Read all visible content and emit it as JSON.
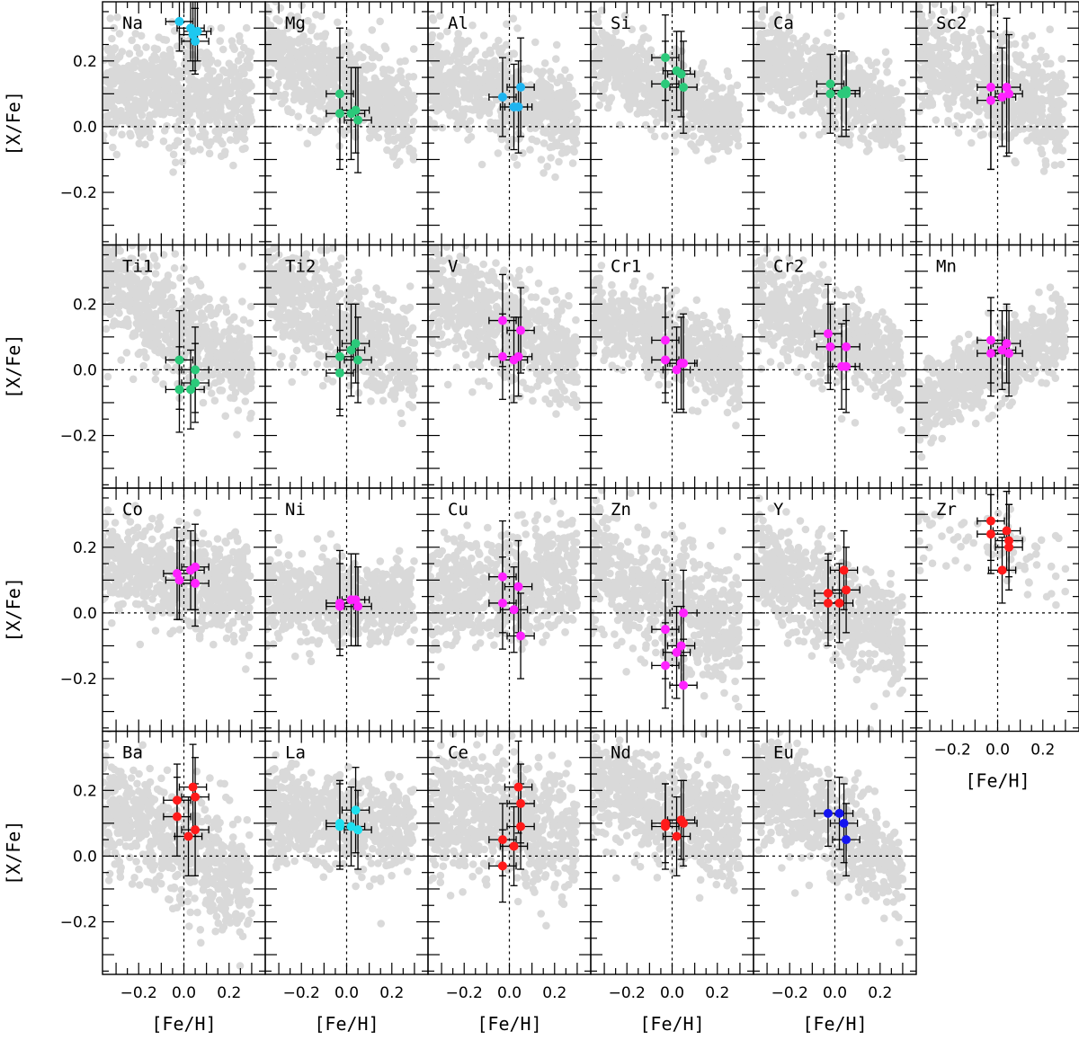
{
  "chart_data": {
    "type": "scatter",
    "title": "",
    "xlabel": "[Fe/H]",
    "ylabel": "[X/Fe]",
    "xlim": [
      -0.36,
      0.36
    ],
    "ylim": [
      -0.36,
      0.38
    ],
    "xticks": [
      -0.2,
      0.0,
      0.2
    ],
    "xtick_labels": [
      "−0.2",
      "0.0",
      "0.2"
    ],
    "yticks": [
      -0.2,
      0.0,
      0.2
    ],
    "ytick_labels": [
      "−0.2",
      "0.0",
      "0.2"
    ],
    "reference_lines": {
      "x": 0.0,
      "y": 0.0
    },
    "background_color": "#d9d9d9",
    "panels": [
      {
        "element": "Na",
        "color": "#1ec8f0",
        "points": [
          {
            "x": -0.02,
            "y": 0.32,
            "xerr": 0.06,
            "yerr": 0.09
          },
          {
            "x": 0.03,
            "y": 0.3,
            "xerr": 0.06,
            "yerr": 0.1
          },
          {
            "x": 0.04,
            "y": 0.28,
            "xerr": 0.06,
            "yerr": 0.11
          },
          {
            "x": 0.05,
            "y": 0.26,
            "xerr": 0.06,
            "yerr": 0.1
          },
          {
            "x": 0.06,
            "y": 0.29,
            "xerr": 0.06,
            "yerr": 0.09
          }
        ]
      },
      {
        "element": "Mg",
        "color": "#2bc97a",
        "points": [
          {
            "x": -0.03,
            "y": 0.1,
            "xerr": 0.06,
            "yerr": 0.2
          },
          {
            "x": -0.03,
            "y": 0.04,
            "xerr": 0.06,
            "yerr": 0.17
          },
          {
            "x": 0.02,
            "y": 0.04,
            "xerr": 0.06,
            "yerr": 0.14
          },
          {
            "x": 0.04,
            "y": 0.05,
            "xerr": 0.06,
            "yerr": 0.13
          },
          {
            "x": 0.05,
            "y": 0.02,
            "xerr": 0.06,
            "yerr": 0.16
          }
        ]
      },
      {
        "element": "Al",
        "color": "#1eb4f0",
        "points": [
          {
            "x": -0.03,
            "y": 0.09,
            "xerr": 0.06,
            "yerr": 0.12
          },
          {
            "x": 0.02,
            "y": 0.06,
            "xerr": 0.06,
            "yerr": 0.13
          },
          {
            "x": 0.04,
            "y": 0.06,
            "xerr": 0.06,
            "yerr": 0.14
          },
          {
            "x": 0.05,
            "y": 0.12,
            "xerr": 0.06,
            "yerr": 0.15
          }
        ]
      },
      {
        "element": "Si",
        "color": "#2bc97a",
        "points": [
          {
            "x": -0.03,
            "y": 0.21,
            "xerr": 0.06,
            "yerr": 0.13
          },
          {
            "x": -0.03,
            "y": 0.13,
            "xerr": 0.06,
            "yerr": 0.13
          },
          {
            "x": 0.02,
            "y": 0.17,
            "xerr": 0.06,
            "yerr": 0.12
          },
          {
            "x": 0.04,
            "y": 0.16,
            "xerr": 0.06,
            "yerr": 0.13
          },
          {
            "x": 0.05,
            "y": 0.12,
            "xerr": 0.06,
            "yerr": 0.14
          }
        ]
      },
      {
        "element": "Ca",
        "color": "#2bc97a",
        "points": [
          {
            "x": -0.02,
            "y": 0.13,
            "xerr": 0.06,
            "yerr": 0.09
          },
          {
            "x": -0.02,
            "y": 0.1,
            "xerr": 0.06,
            "yerr": 0.12
          },
          {
            "x": 0.03,
            "y": 0.1,
            "xerr": 0.06,
            "yerr": 0.13
          },
          {
            "x": 0.05,
            "y": 0.11,
            "xerr": 0.06,
            "yerr": 0.12
          },
          {
            "x": 0.05,
            "y": 0.1,
            "xerr": 0.06,
            "yerr": 0.13
          }
        ]
      },
      {
        "element": "Sc2",
        "color": "#ff22ff",
        "points": [
          {
            "x": -0.03,
            "y": 0.12,
            "xerr": 0.06,
            "yerr": 0.25
          },
          {
            "x": -0.03,
            "y": 0.08,
            "xerr": 0.06,
            "yerr": 0.21
          },
          {
            "x": 0.02,
            "y": 0.09,
            "xerr": 0.06,
            "yerr": 0.15
          },
          {
            "x": 0.04,
            "y": 0.12,
            "xerr": 0.06,
            "yerr": 0.21
          },
          {
            "x": 0.05,
            "y": 0.1,
            "xerr": 0.06,
            "yerr": 0.18
          }
        ]
      },
      {
        "element": "Ti1",
        "color": "#2bc97a",
        "points": [
          {
            "x": -0.02,
            "y": 0.03,
            "xerr": 0.06,
            "yerr": 0.15
          },
          {
            "x": -0.02,
            "y": -0.06,
            "xerr": 0.06,
            "yerr": 0.13
          },
          {
            "x": 0.03,
            "y": -0.06,
            "xerr": 0.06,
            "yerr": 0.12
          },
          {
            "x": 0.05,
            "y": 0.0,
            "xerr": 0.06,
            "yerr": 0.13
          },
          {
            "x": 0.05,
            "y": -0.04,
            "xerr": 0.06,
            "yerr": 0.12
          }
        ]
      },
      {
        "element": "Ti2",
        "color": "#2bc97a",
        "points": [
          {
            "x": -0.03,
            "y": 0.04,
            "xerr": 0.06,
            "yerr": 0.16
          },
          {
            "x": -0.03,
            "y": -0.01,
            "xerr": 0.06,
            "yerr": 0.13
          },
          {
            "x": 0.02,
            "y": 0.06,
            "xerr": 0.06,
            "yerr": 0.14
          },
          {
            "x": 0.04,
            "y": 0.08,
            "xerr": 0.06,
            "yerr": 0.12
          },
          {
            "x": 0.05,
            "y": 0.03,
            "xerr": 0.06,
            "yerr": 0.13
          }
        ]
      },
      {
        "element": "V",
        "color": "#ff22ff",
        "points": [
          {
            "x": -0.03,
            "y": 0.15,
            "xerr": 0.06,
            "yerr": 0.14
          },
          {
            "x": -0.03,
            "y": 0.04,
            "xerr": 0.06,
            "yerr": 0.13
          },
          {
            "x": 0.02,
            "y": 0.03,
            "xerr": 0.06,
            "yerr": 0.13
          },
          {
            "x": 0.04,
            "y": 0.04,
            "xerr": 0.06,
            "yerr": 0.12
          },
          {
            "x": 0.05,
            "y": 0.12,
            "xerr": 0.06,
            "yerr": 0.13
          }
        ]
      },
      {
        "element": "Cr1",
        "color": "#ff22ff",
        "points": [
          {
            "x": -0.03,
            "y": 0.09,
            "xerr": 0.06,
            "yerr": 0.16
          },
          {
            "x": -0.03,
            "y": 0.03,
            "xerr": 0.06,
            "yerr": 0.13
          },
          {
            "x": 0.02,
            "y": 0.0,
            "xerr": 0.06,
            "yerr": 0.13
          },
          {
            "x": 0.04,
            "y": 0.02,
            "xerr": 0.06,
            "yerr": 0.14
          },
          {
            "x": 0.05,
            "y": 0.02,
            "xerr": 0.06,
            "yerr": 0.15
          }
        ]
      },
      {
        "element": "Cr2",
        "color": "#ff22ff",
        "points": [
          {
            "x": -0.03,
            "y": 0.11,
            "xerr": 0.06,
            "yerr": 0.15
          },
          {
            "x": -0.02,
            "y": 0.07,
            "xerr": 0.06,
            "yerr": 0.13
          },
          {
            "x": 0.03,
            "y": 0.01,
            "xerr": 0.06,
            "yerr": 0.13
          },
          {
            "x": 0.05,
            "y": 0.07,
            "xerr": 0.06,
            "yerr": 0.13
          },
          {
            "x": 0.05,
            "y": 0.01,
            "xerr": 0.06,
            "yerr": 0.14
          }
        ]
      },
      {
        "element": "Mn",
        "color": "#ff22ff",
        "points": [
          {
            "x": -0.03,
            "y": 0.09,
            "xerr": 0.06,
            "yerr": 0.13
          },
          {
            "x": -0.03,
            "y": 0.05,
            "xerr": 0.06,
            "yerr": 0.13
          },
          {
            "x": 0.02,
            "y": 0.06,
            "xerr": 0.06,
            "yerr": 0.12
          },
          {
            "x": 0.04,
            "y": 0.08,
            "xerr": 0.06,
            "yerr": 0.12
          },
          {
            "x": 0.05,
            "y": 0.05,
            "xerr": 0.06,
            "yerr": 0.13
          }
        ]
      },
      {
        "element": "Co",
        "color": "#ff22ff",
        "points": [
          {
            "x": -0.03,
            "y": 0.12,
            "xerr": 0.06,
            "yerr": 0.14
          },
          {
            "x": -0.02,
            "y": 0.1,
            "xerr": 0.06,
            "yerr": 0.12
          },
          {
            "x": 0.03,
            "y": 0.13,
            "xerr": 0.06,
            "yerr": 0.12
          },
          {
            "x": 0.05,
            "y": 0.14,
            "xerr": 0.06,
            "yerr": 0.13
          },
          {
            "x": 0.05,
            "y": 0.09,
            "xerr": 0.06,
            "yerr": 0.13
          }
        ]
      },
      {
        "element": "Ni",
        "color": "#ff22ff",
        "points": [
          {
            "x": -0.03,
            "y": 0.03,
            "xerr": 0.06,
            "yerr": 0.16
          },
          {
            "x": -0.03,
            "y": 0.02,
            "xerr": 0.06,
            "yerr": 0.13
          },
          {
            "x": 0.02,
            "y": 0.04,
            "xerr": 0.06,
            "yerr": 0.14
          },
          {
            "x": 0.04,
            "y": 0.04,
            "xerr": 0.06,
            "yerr": 0.14
          },
          {
            "x": 0.05,
            "y": 0.02,
            "xerr": 0.06,
            "yerr": 0.12
          }
        ]
      },
      {
        "element": "Cu",
        "color": "#ff22ff",
        "points": [
          {
            "x": -0.03,
            "y": 0.11,
            "xerr": 0.06,
            "yerr": 0.17
          },
          {
            "x": -0.03,
            "y": 0.03,
            "xerr": 0.06,
            "yerr": 0.14
          },
          {
            "x": 0.02,
            "y": 0.01,
            "xerr": 0.06,
            "yerr": 0.13
          },
          {
            "x": 0.04,
            "y": 0.08,
            "xerr": 0.06,
            "yerr": 0.14
          },
          {
            "x": 0.05,
            "y": -0.07,
            "xerr": 0.06,
            "yerr": 0.13
          }
        ]
      },
      {
        "element": "Zn",
        "color": "#ff22ff",
        "points": [
          {
            "x": -0.03,
            "y": -0.05,
            "xerr": 0.06,
            "yerr": 0.15
          },
          {
            "x": -0.03,
            "y": -0.16,
            "xerr": 0.06,
            "yerr": 0.13
          },
          {
            "x": 0.02,
            "y": -0.12,
            "xerr": 0.06,
            "yerr": 0.14
          },
          {
            "x": 0.04,
            "y": -0.1,
            "xerr": 0.06,
            "yerr": 0.12
          },
          {
            "x": 0.05,
            "y": 0.0,
            "xerr": 0.06,
            "yerr": 0.13
          },
          {
            "x": 0.05,
            "y": -0.22,
            "xerr": 0.06,
            "yerr": 0.14
          }
        ]
      },
      {
        "element": "Y",
        "color": "#ff1a1a",
        "points": [
          {
            "x": -0.03,
            "y": 0.06,
            "xerr": 0.06,
            "yerr": 0.12
          },
          {
            "x": -0.03,
            "y": 0.03,
            "xerr": 0.06,
            "yerr": 0.13
          },
          {
            "x": 0.02,
            "y": 0.03,
            "xerr": 0.06,
            "yerr": 0.12
          },
          {
            "x": 0.04,
            "y": 0.13,
            "xerr": 0.06,
            "yerr": 0.12
          },
          {
            "x": 0.05,
            "y": 0.07,
            "xerr": 0.06,
            "yerr": 0.13
          }
        ]
      },
      {
        "element": "Zr",
        "color": "#ff1a1a",
        "points": [
          {
            "x": -0.03,
            "y": 0.28,
            "xerr": 0.06,
            "yerr": 0.12
          },
          {
            "x": -0.03,
            "y": 0.24,
            "xerr": 0.06,
            "yerr": 0.12
          },
          {
            "x": 0.02,
            "y": 0.13,
            "xerr": 0.06,
            "yerr": 0.1
          },
          {
            "x": 0.04,
            "y": 0.25,
            "xerr": 0.06,
            "yerr": 0.12
          },
          {
            "x": 0.05,
            "y": 0.2,
            "xerr": 0.06,
            "yerr": 0.13
          },
          {
            "x": 0.05,
            "y": 0.22,
            "xerr": 0.06,
            "yerr": 0.11
          }
        ]
      },
      {
        "element": "Ba",
        "color": "#ff1a1a",
        "points": [
          {
            "x": -0.03,
            "y": 0.17,
            "xerr": 0.06,
            "yerr": 0.11
          },
          {
            "x": -0.03,
            "y": 0.12,
            "xerr": 0.06,
            "yerr": 0.12
          },
          {
            "x": 0.02,
            "y": 0.06,
            "xerr": 0.06,
            "yerr": 0.12
          },
          {
            "x": 0.04,
            "y": 0.21,
            "xerr": 0.06,
            "yerr": 0.13
          },
          {
            "x": 0.05,
            "y": 0.18,
            "xerr": 0.06,
            "yerr": 0.12
          },
          {
            "x": 0.05,
            "y": 0.08,
            "xerr": 0.06,
            "yerr": 0.14
          }
        ]
      },
      {
        "element": "La",
        "color": "#1ee0f0",
        "points": [
          {
            "x": -0.03,
            "y": 0.1,
            "xerr": 0.06,
            "yerr": 0.13
          },
          {
            "x": -0.03,
            "y": 0.09,
            "xerr": 0.06,
            "yerr": 0.13
          },
          {
            "x": 0.02,
            "y": 0.09,
            "xerr": 0.06,
            "yerr": 0.12
          },
          {
            "x": 0.04,
            "y": 0.14,
            "xerr": 0.06,
            "yerr": 0.13
          },
          {
            "x": 0.05,
            "y": 0.08,
            "xerr": 0.06,
            "yerr": 0.12
          }
        ]
      },
      {
        "element": "Ce",
        "color": "#ff1a1a",
        "points": [
          {
            "x": -0.03,
            "y": 0.05,
            "xerr": 0.06,
            "yerr": 0.11
          },
          {
            "x": -0.03,
            "y": -0.03,
            "xerr": 0.06,
            "yerr": 0.11
          },
          {
            "x": 0.02,
            "y": 0.03,
            "xerr": 0.06,
            "yerr": 0.12
          },
          {
            "x": 0.04,
            "y": 0.21,
            "xerr": 0.06,
            "yerr": 0.14
          },
          {
            "x": 0.05,
            "y": 0.16,
            "xerr": 0.06,
            "yerr": 0.12
          },
          {
            "x": 0.05,
            "y": 0.09,
            "xerr": 0.06,
            "yerr": 0.13
          }
        ]
      },
      {
        "element": "Nd",
        "color": "#ff1a1a",
        "points": [
          {
            "x": -0.03,
            "y": 0.1,
            "xerr": 0.06,
            "yerr": 0.12
          },
          {
            "x": -0.03,
            "y": 0.09,
            "xerr": 0.06,
            "yerr": 0.13
          },
          {
            "x": 0.02,
            "y": 0.06,
            "xerr": 0.06,
            "yerr": 0.12
          },
          {
            "x": 0.04,
            "y": 0.11,
            "xerr": 0.06,
            "yerr": 0.12
          },
          {
            "x": 0.05,
            "y": 0.1,
            "xerr": 0.06,
            "yerr": 0.13
          }
        ]
      },
      {
        "element": "Eu",
        "color": "#1414f0",
        "points": [
          {
            "x": -0.03,
            "y": 0.13,
            "xerr": 0.06,
            "yerr": 0.1
          },
          {
            "x": 0.02,
            "y": 0.13,
            "xerr": 0.06,
            "yerr": 0.11
          },
          {
            "x": 0.04,
            "y": 0.1,
            "xerr": 0.06,
            "yerr": 0.12
          },
          {
            "x": 0.05,
            "y": 0.05,
            "xerr": 0.06,
            "yerr": 0.11
          }
        ]
      }
    ]
  }
}
